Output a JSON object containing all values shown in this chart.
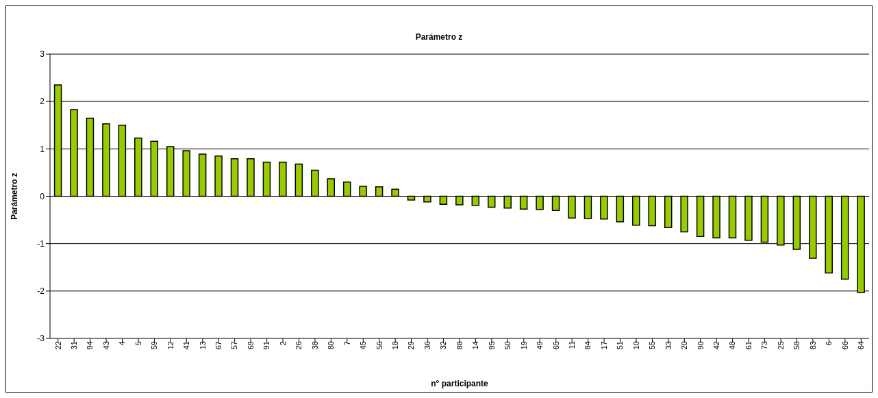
{
  "chart_data": {
    "type": "bar",
    "title": "Parámetro z",
    "xlabel": "n° participante",
    "ylabel": "Parámetro z",
    "categories": [
      "22",
      "31",
      "94",
      "43",
      "4",
      "5",
      "59",
      "12",
      "41",
      "13",
      "67",
      "57",
      "69",
      "91",
      "2",
      "26",
      "38",
      "80",
      "7",
      "45",
      "56",
      "18",
      "29",
      "36",
      "32",
      "88",
      "14",
      "95",
      "50",
      "19",
      "49",
      "65",
      "11",
      "84",
      "17",
      "51",
      "10",
      "55",
      "33",
      "20",
      "90",
      "42",
      "48",
      "61",
      "73",
      "25",
      "58",
      "83",
      "6",
      "66",
      "64"
    ],
    "values": [
      2.35,
      1.83,
      1.65,
      1.53,
      1.5,
      1.23,
      1.16,
      1.05,
      0.96,
      0.89,
      0.85,
      0.79,
      0.79,
      0.72,
      0.72,
      0.68,
      0.55,
      0.37,
      0.3,
      0.21,
      0.2,
      0.15,
      -0.08,
      -0.12,
      -0.17,
      -0.18,
      -0.19,
      -0.23,
      -0.25,
      -0.27,
      -0.28,
      -0.3,
      -0.46,
      -0.47,
      -0.48,
      -0.54,
      -0.61,
      -0.62,
      -0.66,
      -0.75,
      -0.85,
      -0.88,
      -0.88,
      -0.93,
      -0.97,
      -1.03,
      -1.12,
      -1.31,
      -1.62,
      -1.75,
      -2.03
    ],
    "color": "#99cc00",
    "ylim": [
      -3,
      3
    ],
    "yticks": [
      -3,
      -2,
      -1,
      0,
      1,
      2,
      3
    ],
    "grid": "y"
  }
}
